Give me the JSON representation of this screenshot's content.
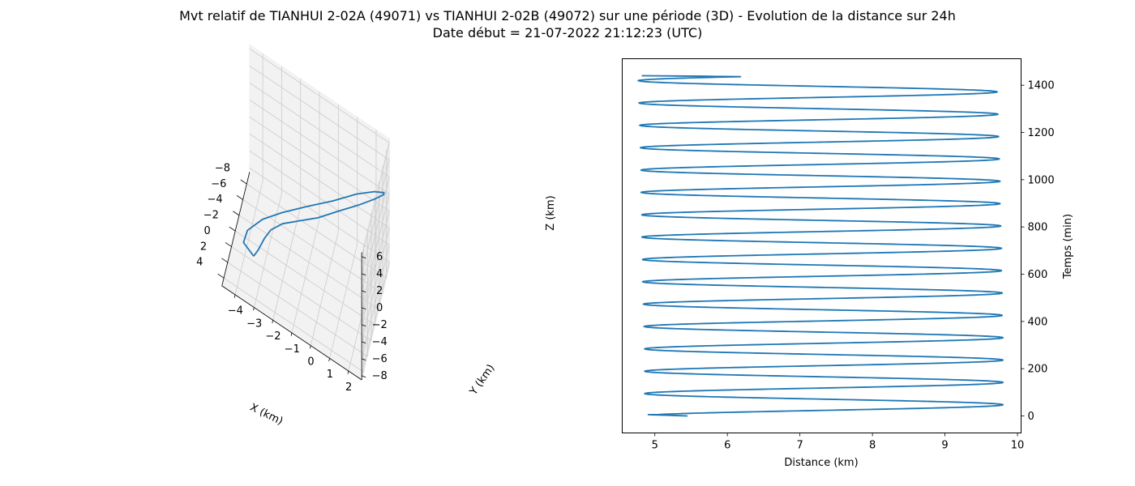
{
  "figure": {
    "title_line1": "Mvt relatif de TIANHUI 2-02A (49071) vs TIANHUI 2-02B (49072) sur une période (3D) - Evolution de la distance sur 24h",
    "title_line2": "Date début = 21-07-2022 21:12:23 (UTC)"
  },
  "chart_data": [
    {
      "type": "line3d",
      "xlabel": "X (km)",
      "ylabel": "Y (km)",
      "zlabel": "Z (km)",
      "x_ticks": [
        -8,
        -6,
        -4,
        -2,
        0,
        2,
        4
      ],
      "y_ticks": [
        -4,
        -3,
        -2,
        -1,
        0,
        1,
        2
      ],
      "z_ticks": [
        -8,
        -6,
        -4,
        -2,
        0,
        2,
        4,
        6
      ],
      "xlim": [
        -9.5,
        5
      ],
      "ylim": [
        -4.7,
        2.7
      ],
      "zlim": [
        -8.5,
        6.5
      ],
      "grid": true,
      "line_color": "#1f77b4",
      "series": [
        {
          "x": [
            2.2,
            3.6,
            4.5,
            4.5,
            4.2,
            3.1,
            1.2,
            -1.3,
            -3.6,
            -5.7,
            -7.5,
            -8.8,
            -9.4,
            -9.3,
            -8.7,
            -7.6,
            -6.0,
            -3.8,
            -1.5,
            0.8
          ],
          "y": [
            -3.3,
            -3.7,
            -3.4,
            -2.6,
            -1.6,
            -0.4,
            0.8,
            1.8,
            2.5,
            2.8,
            2.6,
            2.0,
            1.1,
            0.0,
            -1.0,
            -1.9,
            -2.6,
            -3.0,
            -3.1,
            -3.2
          ],
          "z": [
            -5.5,
            -3.2,
            -0.5,
            2.0,
            4.0,
            5.5,
            6.2,
            6.2,
            5.4,
            3.8,
            1.6,
            -1.0,
            -3.6,
            -5.9,
            -7.6,
            -8.3,
            -8.2,
            -7.5,
            -6.5,
            -5.9
          ]
        }
      ]
    },
    {
      "type": "line",
      "xlabel": "Distance (km)",
      "ylabel": "Temps (min)",
      "xlim": [
        4.55,
        10.05
      ],
      "ylim": [
        -72,
        1512
      ],
      "x_ticks": [
        5,
        6,
        7,
        8,
        9,
        10
      ],
      "y_ticks": [
        0,
        200,
        400,
        600,
        800,
        1000,
        1200,
        1400
      ],
      "grid": false,
      "line_color": "#1f77b4",
      "series": [
        {
          "t_start": 0,
          "t_end": 1440,
          "d_start": 5.45,
          "d_end": 4.82,
          "period_min": 94.6,
          "oscillation_min": [
            4.86,
            4.86,
            4.86,
            4.86,
            4.85,
            4.84,
            4.83,
            4.83,
            4.82,
            4.82,
            4.81,
            4.81,
            4.8,
            4.79,
            4.78,
            4.77
          ],
          "oscillation_max": [
            9.8,
            9.8,
            9.8,
            9.8,
            9.79,
            9.79,
            9.78,
            9.78,
            9.77,
            9.76,
            9.76,
            9.75,
            9.74,
            9.73,
            9.72,
            9.7
          ]
        }
      ]
    }
  ]
}
